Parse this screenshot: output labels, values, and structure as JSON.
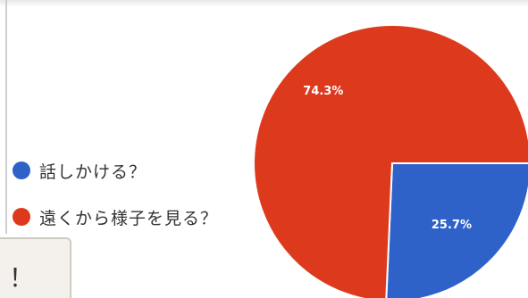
{
  "chart_data": {
    "type": "pie",
    "slices": [
      {
        "label": "話しかける？",
        "value": 25.7,
        "display": "25.7%",
        "color": "#2f62c9"
      },
      {
        "label": "遠くから様子を見る？",
        "value": 74.3,
        "display": "74.3%",
        "color": "#dd3a1d"
      }
    ]
  },
  "legend": {
    "items": [
      {
        "label": "話しかける？",
        "color": "#2f62c9"
      },
      {
        "label": "遠くから様子を見る？",
        "color": "#dd3a1d"
      }
    ]
  },
  "comment": {
    "text": "！"
  }
}
